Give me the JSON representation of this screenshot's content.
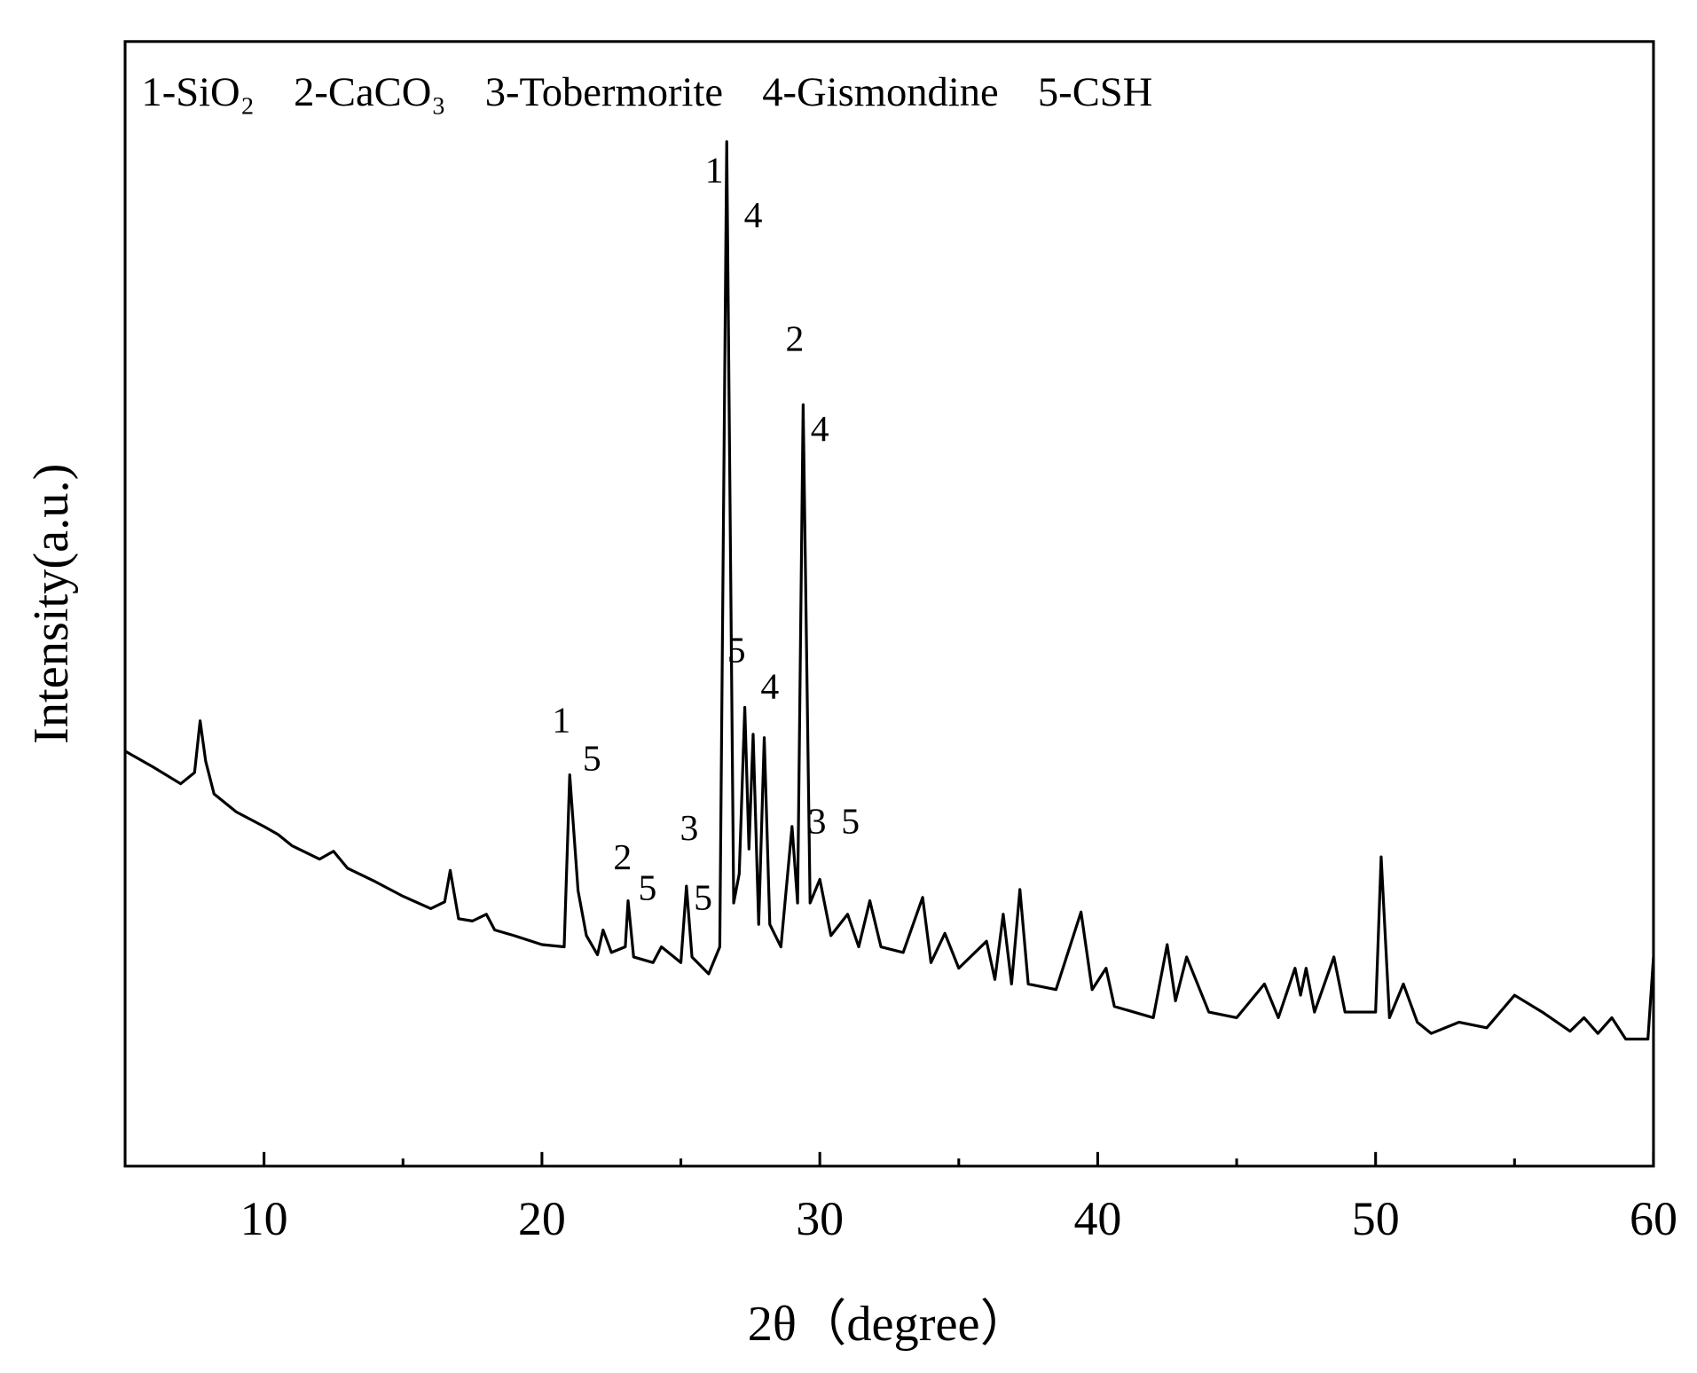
{
  "chart_data": {
    "type": "line",
    "phase_legend": [
      "1-SiO₂",
      "2-CaCO₃",
      "3-Tobermorite",
      "4-Gismondine",
      "5-CSH"
    ],
    "xlabel": "2θ（degree）",
    "ylabel": "Intensity(a.u.)",
    "xlim": [
      5,
      60
    ],
    "xticks": [
      10,
      20,
      30,
      40,
      50,
      60
    ],
    "xminorticks": [
      15,
      25,
      35,
      45,
      55
    ],
    "ylim": [
      0,
      100
    ],
    "color": "#000000",
    "series": [
      {
        "name": null,
        "x": [
          5,
          6,
          7,
          7.5,
          7.7,
          7.9,
          8.2,
          9,
          10,
          10.5,
          11,
          12,
          12.5,
          13,
          14,
          15,
          16,
          16.5,
          16.7,
          17,
          17.5,
          18,
          18.3,
          19,
          20,
          20.8,
          21,
          21.3,
          21.6,
          22,
          22.2,
          22.5,
          23,
          23.1,
          23.3,
          24,
          24.3,
          25,
          25.2,
          25.4,
          26,
          26.4,
          26.65,
          26.9,
          27.1,
          27.3,
          27.45,
          27.6,
          27.8,
          28,
          28.2,
          28.6,
          29,
          29.2,
          29.4,
          29.65,
          30,
          30.4,
          31,
          31.4,
          31.8,
          32.2,
          33,
          33.7,
          34,
          34.5,
          35,
          36,
          36.3,
          36.6,
          36.9,
          37.2,
          37.5,
          38.5,
          39.4,
          39.8,
          40.3,
          40.6,
          42,
          42.5,
          42.8,
          43.2,
          44,
          45,
          46,
          46.5,
          47.1,
          47.3,
          47.5,
          47.8,
          48.5,
          48.9,
          50,
          50.2,
          50.5,
          51,
          51.5,
          52,
          53,
          54,
          55,
          56,
          57,
          57.5,
          58,
          58.5,
          59,
          59.8,
          60
        ],
        "values": [
          36.9,
          35.5,
          34.0,
          35.0,
          39.6,
          36.0,
          33.1,
          31.5,
          30.2,
          29.5,
          28.5,
          27.3,
          28.0,
          26.5,
          25.3,
          24.0,
          22.9,
          23.5,
          26.3,
          22.0,
          21.8,
          22.4,
          21.0,
          20.5,
          19.7,
          19.5,
          34.8,
          24.5,
          20.5,
          18.8,
          21.0,
          19.0,
          19.5,
          23.6,
          18.6,
          18.1,
          19.5,
          18.1,
          24.9,
          18.6,
          17.1,
          19.5,
          91.1,
          23.4,
          26.0,
          40.8,
          28.2,
          38.4,
          21.5,
          38.1,
          21.5,
          19.5,
          30.2,
          23.4,
          67.7,
          23.4,
          25.5,
          20.5,
          22.4,
          19.5,
          23.6,
          19.5,
          19.0,
          23.9,
          18.1,
          20.7,
          17.6,
          20.0,
          16.6,
          22.4,
          16.2,
          24.6,
          16.2,
          15.7,
          22.6,
          15.7,
          17.6,
          14.2,
          13.2,
          19.7,
          14.7,
          18.6,
          13.7,
          13.2,
          16.2,
          13.2,
          17.6,
          15.2,
          17.6,
          13.7,
          18.6,
          13.7,
          13.7,
          27.5,
          13.2,
          16.2,
          12.8,
          11.8,
          12.8,
          12.3,
          15.2,
          13.7,
          12.0,
          13.2,
          11.8,
          13.2,
          11.3,
          11.3,
          18.6
        ]
      }
    ],
    "annotations": [
      "1",
      "4",
      "2",
      "4",
      "5",
      "4",
      "1",
      "5",
      "3",
      "2",
      "5",
      "5",
      "3",
      "5"
    ]
  }
}
